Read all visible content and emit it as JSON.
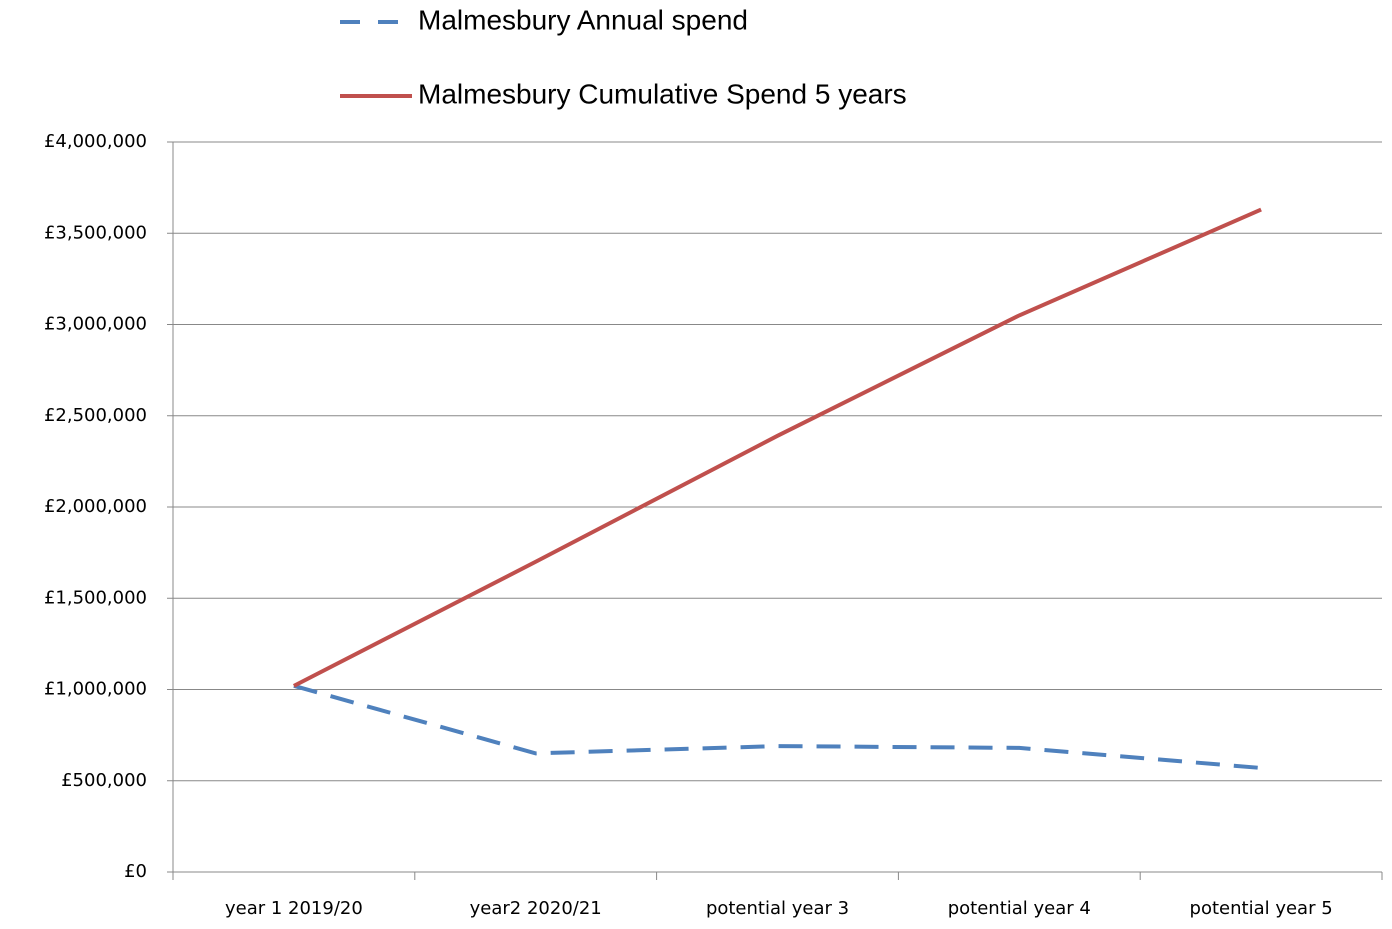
{
  "chart_data": {
    "type": "line",
    "categories": [
      "year 1 2019/20",
      "year2 2020/21",
      "potential year 3",
      "potential year 4",
      "potential year 5"
    ],
    "series": [
      {
        "name": "Malmesbury Annual spend",
        "color": "#4f81bd",
        "dashed": true,
        "values": [
          1020000,
          650000,
          690000,
          680000,
          570000
        ]
      },
      {
        "name": "Malmesbury Cumulative Spend 5 years",
        "color": "#c0504d",
        "dashed": false,
        "values": [
          1020000,
          1700000,
          2390000,
          3050000,
          3630000
        ]
      }
    ],
    "ylim": [
      0,
      4000000
    ],
    "yticks": [
      {
        "value": 0,
        "label": "£0"
      },
      {
        "value": 500000,
        "label": "£500,000"
      },
      {
        "value": 1000000,
        "label": "£1,000,000"
      },
      {
        "value": 1500000,
        "label": "£1,500,000"
      },
      {
        "value": 2000000,
        "label": "£2,000,000"
      },
      {
        "value": 2500000,
        "label": "£2,500,000"
      },
      {
        "value": 3000000,
        "label": "£3,000,000"
      },
      {
        "value": 3500000,
        "label": "£3,500,000"
      },
      {
        "value": 4000000,
        "label": "£4,000,000"
      }
    ],
    "grid": true,
    "legend": "top"
  }
}
